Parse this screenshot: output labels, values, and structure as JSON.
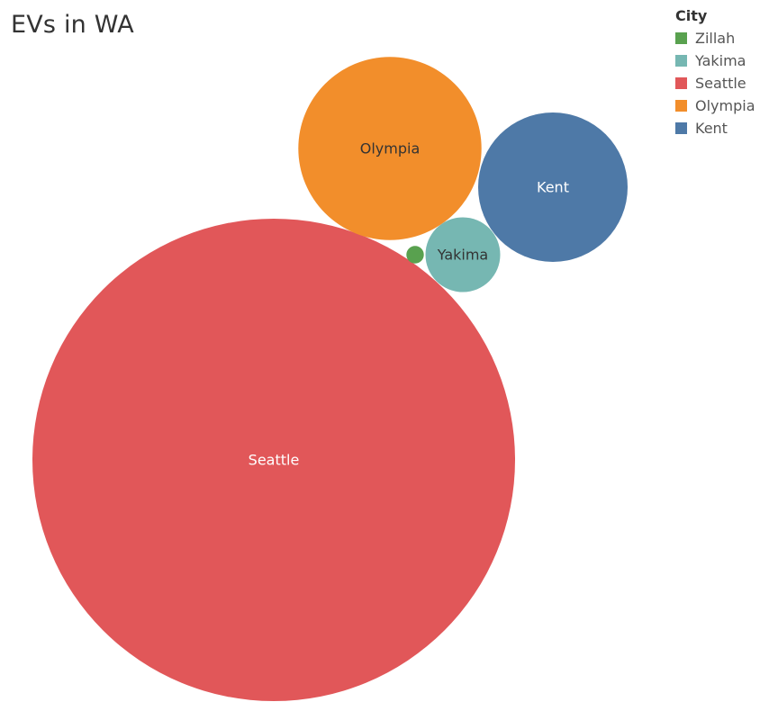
{
  "chart_data": {
    "type": "packed-bubble",
    "title": "EVs in WA",
    "legend": {
      "title": "City",
      "placement": "top-right",
      "entries": [
        {
          "label": "Zillah",
          "color": "#59a14f"
        },
        {
          "label": "Yakima",
          "color": "#76b7b2"
        },
        {
          "label": "Seattle",
          "color": "#e15759"
        },
        {
          "label": "Olympia",
          "color": "#f28e2b"
        },
        {
          "label": "Kent",
          "color": "#4e79a7"
        }
      ]
    },
    "bubbles": [
      {
        "city": "Seattle",
        "relative_size": 1.0,
        "color": "#e15759",
        "label": "Seattle",
        "label_color": "#ffffff"
      },
      {
        "city": "Olympia",
        "relative_size": 0.144,
        "color": "#f28e2b",
        "label": "Olympia",
        "label_color": "#333333"
      },
      {
        "city": "Kent",
        "relative_size": 0.096,
        "color": "#4e79a7",
        "label": "Kent",
        "label_color": "#ffffff"
      },
      {
        "city": "Yakima",
        "relative_size": 0.024,
        "color": "#76b7b2",
        "label": "Yakima",
        "label_color": "#333333"
      },
      {
        "city": "Zillah",
        "relative_size": 0.0013,
        "color": "#59a14f",
        "label": "",
        "label_color": "#333333"
      }
    ]
  }
}
